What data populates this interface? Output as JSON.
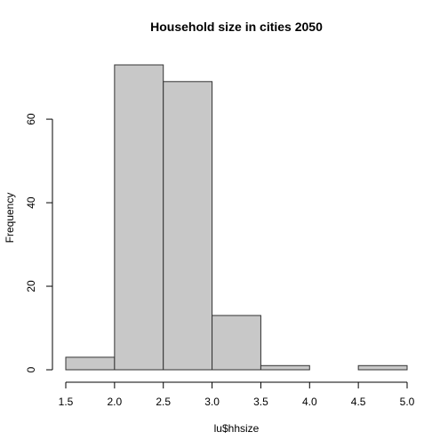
{
  "chart_data": {
    "type": "bar",
    "title": "Household size in cities 2050",
    "xlabel": "lu$hhsize",
    "ylabel": "Frequency",
    "bins": [
      {
        "x0": 1.5,
        "x1": 2.0,
        "count": 3
      },
      {
        "x0": 2.0,
        "x1": 2.5,
        "count": 73
      },
      {
        "x0": 2.5,
        "x1": 3.0,
        "count": 69
      },
      {
        "x0": 3.0,
        "x1": 3.5,
        "count": 13
      },
      {
        "x0": 3.5,
        "x1": 4.0,
        "count": 1
      },
      {
        "x0": 4.0,
        "x1": 4.5,
        "count": 0
      },
      {
        "x0": 4.5,
        "x1": 5.0,
        "count": 1
      }
    ],
    "xlim": [
      1.5,
      5.0
    ],
    "ylim": [
      0,
      73
    ],
    "x_ticks": [
      1.5,
      2.0,
      2.5,
      3.0,
      3.5,
      4.0,
      4.5,
      5.0
    ],
    "x_tick_labels": [
      "1.5",
      "2.0",
      "2.5",
      "3.0",
      "3.5",
      "4.0",
      "4.5",
      "5.0"
    ],
    "y_ticks": [
      0,
      20,
      40,
      60
    ],
    "y_tick_labels": [
      "0",
      "20",
      "40",
      "60"
    ],
    "grid": false,
    "colors": {
      "bar_fill": "#c8c8c8",
      "bar_stroke": "#333333",
      "axis": "#000000"
    }
  }
}
